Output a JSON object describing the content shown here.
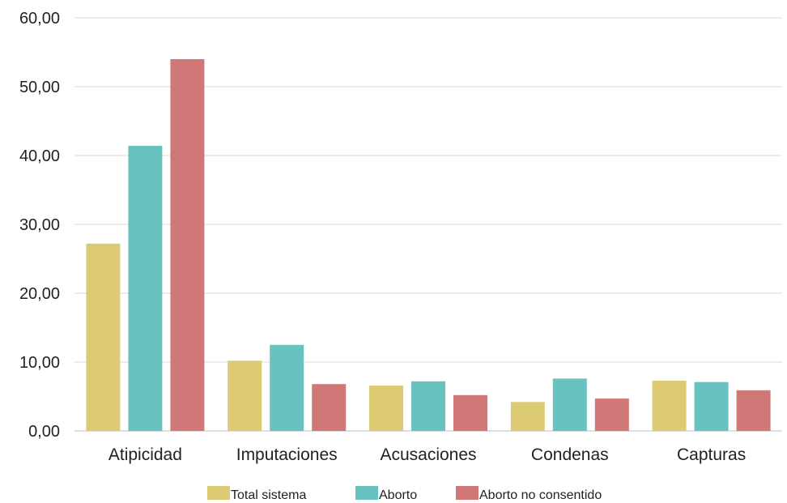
{
  "chart_data": {
    "type": "bar",
    "title": "",
    "xlabel": "",
    "ylabel": "",
    "categories": [
      "Atipicidad",
      "Imputaciones",
      "Acusaciones",
      "Condenas",
      "Capturas"
    ],
    "series": [
      {
        "name": "Total sistema",
        "color": "#dccb73",
        "values": [
          27.2,
          10.2,
          6.6,
          4.2,
          7.3
        ]
      },
      {
        "name": "Aborto",
        "color": "#68c3c0",
        "values": [
          41.4,
          12.5,
          7.2,
          7.6,
          7.1
        ]
      },
      {
        "name": "Aborto no consentido",
        "color": "#d07878",
        "values": [
          54.0,
          6.8,
          5.2,
          4.7,
          5.9
        ]
      }
    ],
    "ylim": [
      0,
      60
    ],
    "yticks": [
      "0,00",
      "10,00",
      "20,00",
      "30,00",
      "40,00",
      "50,00",
      "60,00"
    ],
    "grid": true,
    "legend_position": "bottom"
  }
}
